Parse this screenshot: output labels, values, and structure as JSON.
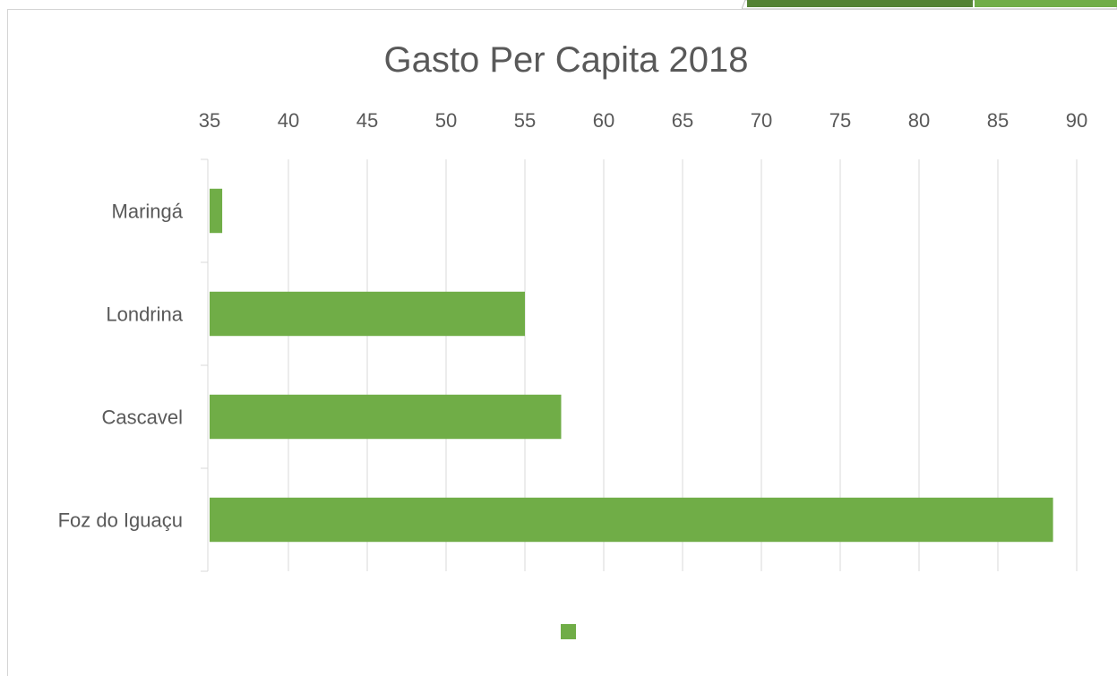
{
  "colors": {
    "bar": "#70ad47",
    "grid": "#d9d9d9",
    "axis_text": "#595959",
    "title_text": "#595959",
    "accent_dark": "#548235",
    "accent_light": "#70ad47"
  },
  "chart_data": {
    "type": "bar",
    "orientation": "horizontal",
    "title": "Gasto Per Capita 2018",
    "xlabel": "",
    "ylabel": "",
    "categories": [
      "Maringá",
      "Londrina",
      "Cascavel",
      "Foz do Iguaçu"
    ],
    "series": [
      {
        "values": [
          35.8,
          55.0,
          57.3,
          88.5
        ]
      }
    ],
    "xlim": [
      35,
      90
    ],
    "x_ticks": [
      "35",
      "40",
      "45",
      "50",
      "55",
      "60",
      "65",
      "70",
      "75",
      "80",
      "85",
      "90"
    ],
    "x_axis_position": "top",
    "grid": true,
    "legend": {
      "position": "bottom",
      "entries": [
        ""
      ]
    }
  }
}
